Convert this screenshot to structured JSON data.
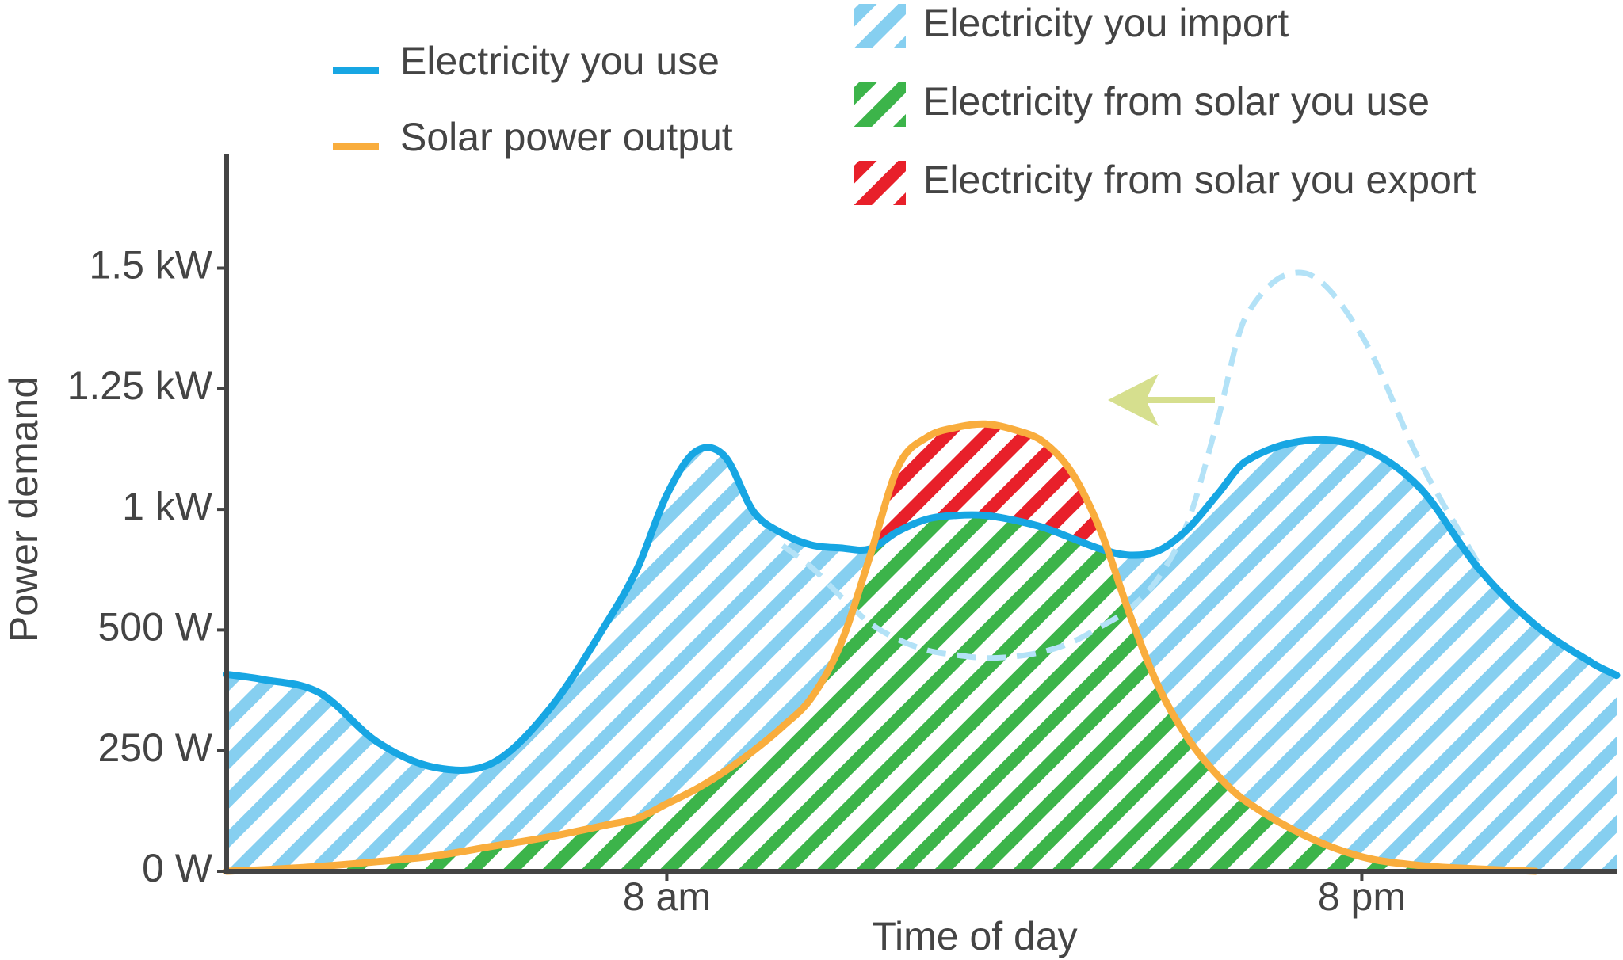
{
  "chart_data": {
    "type": "line",
    "x_label": "Time of day",
    "y_label": "Power demand",
    "x": [
      0.4,
      1,
      2,
      3,
      4,
      5,
      6,
      7,
      7.5,
      8,
      8.5,
      9,
      9.5,
      10,
      10.5,
      11,
      11.5,
      12,
      12.5,
      13,
      13.5,
      14,
      14.5,
      15,
      15.5,
      16,
      16.5,
      17,
      17.5,
      18,
      19,
      20,
      21,
      22,
      23,
      24,
      24.4
    ],
    "xlim": [
      0.4,
      24.4
    ],
    "xticks": [
      {
        "value": 8,
        "label": "8 am"
      },
      {
        "value": 20,
        "label": "8 pm"
      }
    ],
    "ylim": [
      0,
      1725
    ],
    "yticks": [
      {
        "value": 0,
        "label": "0 W"
      },
      {
        "value": 250,
        "label": "250 W"
      },
      {
        "value": 500,
        "label": "500 W"
      },
      {
        "value": 1000,
        "label": "1 kW"
      },
      {
        "value": 1250,
        "label": "1.25 kW"
      },
      {
        "value": 1500,
        "label": "1.5 kW"
      }
    ],
    "series": [
      {
        "name": "Electricity you use",
        "color": "#17a6e3",
        "values": [
          408,
          398,
          370,
          268,
          215,
          225,
          340,
          545,
          760,
          1030,
          1120,
          1110,
          990,
          900,
          852,
          840,
          836,
          910,
          960,
          975,
          975,
          955,
          925,
          880,
          835,
          810,
          830,
          920,
          1030,
          1100,
          1142,
          1128,
          1045,
          760,
          520,
          430,
          406
        ]
      },
      {
        "name": "Solar power output",
        "color": "#f9ad3d",
        "values": [
          0,
          3,
          10,
          20,
          32,
          52,
          72,
          97,
          110,
          140,
          170,
          207,
          250,
          300,
          360,
          470,
          800,
          1090,
          1150,
          1170,
          1177,
          1165,
          1140,
          1075,
          905,
          560,
          380,
          275,
          200,
          145,
          75,
          30,
          12,
          5,
          0,
          null,
          null
        ]
      },
      {
        "color": "#b3e2f7",
        "dashed": true,
        "values": [
          null,
          null,
          null,
          null,
          null,
          null,
          null,
          null,
          null,
          null,
          null,
          null,
          null,
          850,
          760,
          640,
          530,
          480,
          458,
          448,
          442,
          445,
          455,
          475,
          515,
          590,
          720,
          950,
          1180,
          1400,
          1490,
          1360,
          1100,
          780,
          null,
          null,
          null
        ]
      }
    ],
    "areas": [
      {
        "name": "Electricity you import",
        "color": "#86cff0"
      },
      {
        "name": "Electricity from solar you use",
        "color": "#3cb44a"
      },
      {
        "name": "Electricity from solar you export",
        "color": "#e8202a"
      }
    ]
  }
}
